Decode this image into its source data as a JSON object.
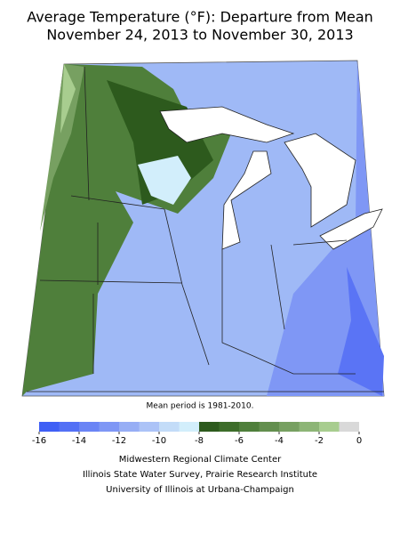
{
  "header": {
    "title_line1": "Average Temperature (°F): Departure from Mean",
    "title_line2": "November 24, 2013 to November 30, 2013"
  },
  "map": {
    "note": "Mean period is 1981-2010."
  },
  "legend": {
    "ticks": [
      -16,
      -14,
      -12,
      -10,
      -8,
      -6,
      -4,
      -2,
      0
    ],
    "colors": [
      "#3f5ff5",
      "#5370f5",
      "#6a84f5",
      "#7f97f5",
      "#97aef5",
      "#acc3f7",
      "#c3dcf8",
      "#d2eefb",
      "#2d5a1d",
      "#3d6d2a",
      "#4f7f3b",
      "#638f4e",
      "#77a061",
      "#8db576",
      "#a8cd8f",
      "#d9d9d9"
    ]
  },
  "credits": [
    "Midwestern Regional Climate Center",
    "Illinois State Water Survey, Prairie Research Institute",
    "University of Illinois at Urbana-Champaign"
  ]
}
